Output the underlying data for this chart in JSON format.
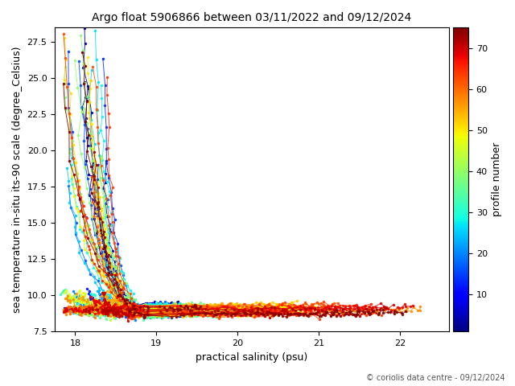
{
  "title": "Argo float 5906866 between 03/11/2022 and 09/12/2024",
  "xlabel": "practical salinity (psu)",
  "ylabel": "sea temperature in-situ its-90 scale (degree_Celsius)",
  "colorbar_label": "profile number",
  "copyright_text": "© coriolis data centre - 09/12/2024",
  "xlim": [
    17.75,
    22.6
  ],
  "ylim": [
    7.5,
    28.5
  ],
  "xticks": [
    18,
    19,
    20,
    21,
    22
  ],
  "cbar_ticks": [
    10,
    20,
    30,
    40,
    50,
    60,
    70
  ],
  "n_profiles": 75,
  "colormap": "jet",
  "vmin": 1,
  "vmax": 75,
  "figsize": [
    6.4,
    4.8
  ],
  "dpi": 100
}
